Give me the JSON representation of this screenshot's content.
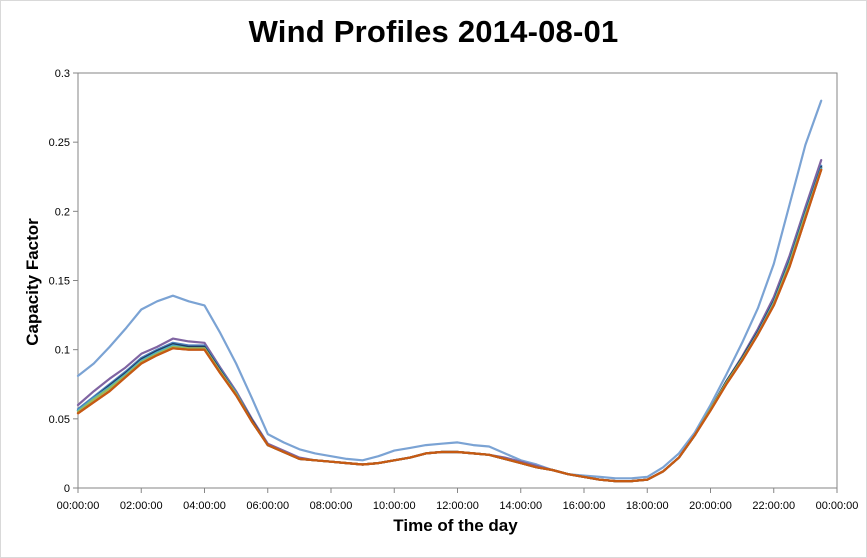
{
  "chart_data": {
    "type": "line",
    "title": "Wind Profiles 2014-08-01",
    "xlabel": "Time of the day",
    "ylabel": "Capacity Factor",
    "x_tick_labels": [
      "00:00:00",
      "02:00:00",
      "04:00:00",
      "06:00:00",
      "08:00:00",
      "10:00:00",
      "12:00:00",
      "14:00:00",
      "16:00:00",
      "18:00:00",
      "20:00:00",
      "22:00:00",
      "00:00:00"
    ],
    "y_tick_labels": [
      "0",
      "0.05",
      "0.1",
      "0.15",
      "0.2",
      "0.25",
      "0.3"
    ],
    "x_hours": [
      0,
      0.5,
      1,
      1.5,
      2,
      2.5,
      3,
      3.5,
      4,
      4.5,
      5,
      5.5,
      6,
      6.5,
      7,
      7.5,
      8,
      8.5,
      9,
      9.5,
      10,
      10.5,
      11,
      11.5,
      12,
      12.5,
      13,
      13.5,
      14,
      14.5,
      15,
      15.5,
      16,
      16.5,
      17,
      17.5,
      18,
      18.5,
      19,
      19.5,
      20,
      20.5,
      21,
      21.5,
      22,
      22.5,
      23,
      23.5
    ],
    "xlim": [
      0,
      24
    ],
    "ylim": [
      0,
      0.3
    ],
    "grid": false,
    "legend": "none",
    "series": [
      {
        "color": "#7ba3d4",
        "values": [
          0.081,
          0.09,
          0.102,
          0.115,
          0.129,
          0.135,
          0.139,
          0.135,
          0.132,
          0.112,
          0.09,
          0.065,
          0.039,
          0.033,
          0.028,
          0.025,
          0.023,
          0.021,
          0.02,
          0.023,
          0.027,
          0.029,
          0.031,
          0.032,
          0.033,
          0.031,
          0.03,
          0.025,
          0.02,
          0.017,
          0.013,
          0.01,
          0.009,
          0.008,
          0.007,
          0.007,
          0.008,
          0.015,
          0.025,
          0.04,
          0.06,
          0.082,
          0.105,
          0.13,
          0.162,
          0.205,
          0.248,
          0.28
        ]
      },
      {
        "color": "#8064a2",
        "values": [
          0.06,
          0.07,
          0.079,
          0.087,
          0.097,
          0.102,
          0.108,
          0.106,
          0.105,
          0.087,
          0.07,
          0.05,
          0.032,
          0.027,
          0.022,
          0.02,
          0.019,
          0.018,
          0.017,
          0.018,
          0.02,
          0.022,
          0.025,
          0.026,
          0.026,
          0.025,
          0.024,
          0.022,
          0.019,
          0.016,
          0.013,
          0.01,
          0.008,
          0.006,
          0.005,
          0.005,
          0.006,
          0.012,
          0.022,
          0.038,
          0.057,
          0.077,
          0.095,
          0.115,
          0.138,
          0.168,
          0.203,
          0.237
        ]
      },
      {
        "color": "#4f81bd",
        "values": [
          0.057,
          0.066,
          0.075,
          0.084,
          0.094,
          0.1,
          0.105,
          0.103,
          0.103,
          0.086,
          0.069,
          0.049,
          0.031,
          0.026,
          0.021,
          0.02,
          0.019,
          0.018,
          0.017,
          0.018,
          0.02,
          0.022,
          0.025,
          0.026,
          0.026,
          0.025,
          0.024,
          0.021,
          0.018,
          0.015,
          0.013,
          0.01,
          0.008,
          0.006,
          0.005,
          0.005,
          0.006,
          0.012,
          0.022,
          0.038,
          0.057,
          0.077,
          0.094,
          0.113,
          0.135,
          0.165,
          0.2,
          0.233
        ]
      },
      {
        "color": "#1f3b5f",
        "values": [
          0.056,
          0.065,
          0.074,
          0.083,
          0.093,
          0.099,
          0.104,
          0.102,
          0.102,
          0.085,
          0.068,
          0.049,
          0.031,
          0.026,
          0.021,
          0.02,
          0.019,
          0.018,
          0.017,
          0.018,
          0.02,
          0.022,
          0.025,
          0.026,
          0.026,
          0.025,
          0.024,
          0.021,
          0.018,
          0.015,
          0.013,
          0.01,
          0.008,
          0.006,
          0.005,
          0.005,
          0.006,
          0.012,
          0.022,
          0.038,
          0.057,
          0.077,
          0.094,
          0.113,
          0.135,
          0.164,
          0.199,
          0.232
        ]
      },
      {
        "color": "#4bacc6",
        "values": [
          0.056,
          0.065,
          0.073,
          0.082,
          0.092,
          0.098,
          0.103,
          0.101,
          0.101,
          0.084,
          0.068,
          0.048,
          0.031,
          0.026,
          0.021,
          0.02,
          0.019,
          0.018,
          0.017,
          0.018,
          0.02,
          0.022,
          0.025,
          0.026,
          0.026,
          0.025,
          0.024,
          0.021,
          0.018,
          0.015,
          0.013,
          0.01,
          0.008,
          0.006,
          0.005,
          0.005,
          0.006,
          0.012,
          0.022,
          0.038,
          0.057,
          0.076,
          0.093,
          0.112,
          0.134,
          0.163,
          0.198,
          0.231
        ]
      },
      {
        "color": "#9bbb59",
        "values": [
          0.055,
          0.064,
          0.072,
          0.081,
          0.091,
          0.097,
          0.102,
          0.101,
          0.101,
          0.084,
          0.068,
          0.048,
          0.031,
          0.026,
          0.021,
          0.02,
          0.019,
          0.018,
          0.017,
          0.018,
          0.02,
          0.022,
          0.025,
          0.026,
          0.026,
          0.025,
          0.024,
          0.021,
          0.018,
          0.015,
          0.013,
          0.01,
          0.008,
          0.006,
          0.005,
          0.005,
          0.006,
          0.012,
          0.022,
          0.038,
          0.057,
          0.076,
          0.093,
          0.111,
          0.133,
          0.162,
          0.197,
          0.23
        ]
      },
      {
        "color": "#c0504d",
        "values": [
          0.054,
          0.062,
          0.07,
          0.08,
          0.09,
          0.096,
          0.101,
          0.1,
          0.1,
          0.083,
          0.067,
          0.048,
          0.031,
          0.026,
          0.021,
          0.02,
          0.019,
          0.018,
          0.017,
          0.018,
          0.02,
          0.022,
          0.025,
          0.026,
          0.026,
          0.025,
          0.024,
          0.021,
          0.018,
          0.015,
          0.013,
          0.01,
          0.008,
          0.006,
          0.005,
          0.005,
          0.006,
          0.012,
          0.022,
          0.038,
          0.056,
          0.075,
          0.092,
          0.111,
          0.132,
          0.16,
          0.195,
          0.23
        ]
      },
      {
        "color": "#c65a11",
        "values": [
          0.054,
          0.062,
          0.07,
          0.08,
          0.09,
          0.096,
          0.101,
          0.1,
          0.1,
          0.083,
          0.067,
          0.048,
          0.031,
          0.026,
          0.021,
          0.02,
          0.019,
          0.018,
          0.017,
          0.018,
          0.02,
          0.022,
          0.025,
          0.026,
          0.026,
          0.025,
          0.024,
          0.021,
          0.018,
          0.015,
          0.013,
          0.01,
          0.008,
          0.006,
          0.005,
          0.005,
          0.006,
          0.012,
          0.022,
          0.038,
          0.056,
          0.075,
          0.092,
          0.111,
          0.132,
          0.16,
          0.195,
          0.23
        ]
      }
    ]
  }
}
